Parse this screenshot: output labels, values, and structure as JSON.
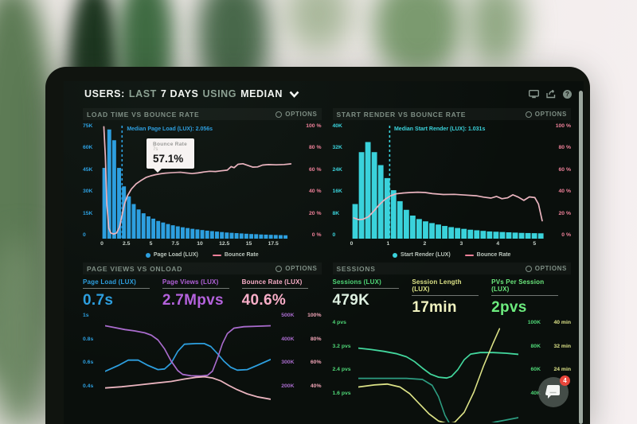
{
  "colors": {
    "blue": "#2d9fdf",
    "cyan": "#3ad2db",
    "pink_line": "#eab4bf",
    "pink_axis": "#ee8099",
    "pink_soft": "#f0a4b6",
    "purple": "#aa6cce",
    "purple_value": "#b462dc",
    "pink_value": "#f9aec8",
    "green": "#4fd877",
    "green_value": "#6ceb7e",
    "pale_green_value": "#def1e1",
    "yellow": "#dde387",
    "yellow_value": "#f0f2c0",
    "teal": "#43d89e",
    "teal_dark": "#2d9e82",
    "white": "#f2f5f2",
    "red_badge": "#e8463b"
  },
  "header": {
    "users": "USERS:",
    "last": "LAST",
    "days": "7 DAYS",
    "using": "USING",
    "median": "MEDIAN",
    "help_glyph": "?"
  },
  "panels": {
    "load_time": {
      "title": "LOAD TIME VS BOUNCE RATE",
      "options": "OPTIONS",
      "annotation": "Median Page Load (LUX): 2.056s",
      "tooltip": {
        "series": "Bounce Rate",
        "x": "7s",
        "value": "57.1%"
      },
      "legend": [
        {
          "label": "Page Load (LUX)"
        },
        {
          "label": "Bounce Rate"
        }
      ]
    },
    "start_render": {
      "title": "START RENDER VS BOUNCE RATE",
      "options": "OPTIONS",
      "annotation": "Median Start Render (LUX): 1.031s",
      "legend": [
        {
          "label": "Start Render (LUX)"
        },
        {
          "label": "Bounce Rate"
        }
      ]
    },
    "page_views": {
      "title": "PAGE VIEWS VS ONLOAD",
      "options": "OPTIONS",
      "metrics": [
        {
          "label": "Page Load (LUX)",
          "value": "0.7s"
        },
        {
          "label": "Page Views (LUX)",
          "value": "2.7Mpvs"
        },
        {
          "label": "Bounce Rate (LUX)",
          "value": "40.6%"
        }
      ]
    },
    "sessions": {
      "title": "SESSIONS",
      "options": "OPTIONS",
      "metrics": [
        {
          "label": "Sessions (LUX)",
          "value": "479K"
        },
        {
          "label": "Session Length (LUX)",
          "value": "17min"
        },
        {
          "label": "PVs Per Session (LUX)",
          "value": "2pvs"
        }
      ]
    }
  },
  "chat_widget": {
    "badge": "4"
  },
  "chart_data": [
    {
      "type": "bar",
      "title": "LOAD TIME VS BOUNCE RATE",
      "x_axis_max": 19.8,
      "x_ticks": [
        {
          "label": "0",
          "v": 0
        },
        {
          "label": "2.5",
          "v": 2.5
        },
        {
          "label": "5",
          "v": 5
        },
        {
          "label": "7.5",
          "v": 7.5
        },
        {
          "label": "10",
          "v": 10
        },
        {
          "label": "12.5",
          "v": 12.5
        },
        {
          "label": "15",
          "v": 15
        },
        {
          "label": "17.5",
          "v": 17.5
        }
      ],
      "y_left": {
        "max_k": 75,
        "ticks": [
          "75K",
          "60K",
          "45K",
          "30K",
          "15K",
          "0"
        ],
        "color": "blue"
      },
      "y_right": {
        "max_pct": 100,
        "ticks": [
          "100 %",
          "80 %",
          "60 %",
          "40 %",
          "20 %",
          "0 %"
        ],
        "color": "pink_axis"
      },
      "bar_series": {
        "name": "Page Load (LUX)",
        "color": "blue",
        "bin_width_s": 0.5,
        "values_k": [
          46,
          71,
          64,
          46,
          34,
          27.5,
          22.5,
          19,
          16.5,
          14.5,
          13,
          11.5,
          10.5,
          9.5,
          8.7,
          8,
          7.4,
          6.9,
          6.4,
          6,
          5.6,
          5.2,
          4.9,
          4.6,
          4.3,
          4,
          3.8,
          3.6,
          3.4,
          3.2,
          3,
          2.9,
          2.7,
          2.6,
          2.5,
          2.4,
          2.3,
          2.2
        ]
      },
      "line_series": {
        "name": "Bounce Rate",
        "color": "pink_line",
        "points_s_pct": [
          [
            0.2,
            97
          ],
          [
            0.35,
            72
          ],
          [
            0.5,
            30
          ],
          [
            0.7,
            9
          ],
          [
            0.9,
            5
          ],
          [
            1.2,
            4
          ],
          [
            1.5,
            5
          ],
          [
            1.8,
            10
          ],
          [
            2.0,
            18
          ],
          [
            2.3,
            30
          ],
          [
            2.6,
            37
          ],
          [
            3.0,
            43
          ],
          [
            3.5,
            47.5
          ],
          [
            4.0,
            50.5
          ],
          [
            4.5,
            53
          ],
          [
            5.0,
            54.5
          ],
          [
            5.5,
            55.5
          ],
          [
            6.0,
            56.3
          ],
          [
            6.5,
            56.8
          ],
          [
            7.0,
            57.1
          ],
          [
            7.5,
            57.4
          ],
          [
            8.0,
            57.6
          ],
          [
            8.6,
            57
          ],
          [
            9.2,
            56.4
          ],
          [
            9.8,
            57
          ],
          [
            10.4,
            57.8
          ],
          [
            11.0,
            58.4
          ],
          [
            11.6,
            58.2
          ],
          [
            12.2,
            58.8
          ],
          [
            12.8,
            59.4
          ],
          [
            13.2,
            62.5
          ],
          [
            13.5,
            61.5
          ],
          [
            13.9,
            64.5
          ],
          [
            14.4,
            65
          ],
          [
            14.9,
            63.5
          ],
          [
            15.4,
            62
          ],
          [
            15.9,
            62.2
          ],
          [
            16.4,
            63.8
          ],
          [
            17.0,
            64.2
          ],
          [
            17.8,
            64
          ],
          [
            18.6,
            64.3
          ],
          [
            19.3,
            64.8
          ]
        ]
      },
      "median": {
        "label": "Median Page Load (LUX): 2.056s",
        "value_s": 2.056,
        "color": "blue"
      },
      "tooltip": {
        "series": "Bounce Rate",
        "x_s": 7,
        "value_pct": 57.1
      }
    },
    {
      "type": "bar",
      "title": "START RENDER VS BOUNCE RATE",
      "x_axis_max": 5.3,
      "x_ticks": [
        {
          "label": "0",
          "v": 0
        },
        {
          "label": "1",
          "v": 1
        },
        {
          "label": "2",
          "v": 2
        },
        {
          "label": "3",
          "v": 3
        },
        {
          "label": "4",
          "v": 4
        },
        {
          "label": "5",
          "v": 5
        }
      ],
      "y_left": {
        "max_k": 40,
        "ticks": [
          "40K",
          "32K",
          "24K",
          "16K",
          "8K",
          "0"
        ],
        "color": "cyan"
      },
      "y_right": {
        "max_pct": 100,
        "ticks": [
          "100 %",
          "80 %",
          "60 %",
          "40 %",
          "20 %",
          "0 %"
        ],
        "color": "pink_axis"
      },
      "bar_series": {
        "name": "Start Render (LUX)",
        "color": "cyan",
        "bin_width_s": 0.175,
        "values_k": [
          12,
          30,
          33.5,
          30,
          25.5,
          21,
          16.8,
          13,
          10,
          8,
          6.8,
          6,
          5.4,
          4.9,
          4.4,
          4,
          3.7,
          3.4,
          3.1,
          2.9,
          2.7,
          2.5,
          2.4,
          2.3,
          2.2,
          2.1,
          2.0,
          1.95,
          1.9,
          1.85
        ]
      },
      "line_series": {
        "name": "Bounce Rate",
        "color": "pink_line",
        "points_s_pct": [
          [
            0.05,
            18
          ],
          [
            0.18,
            16.5
          ],
          [
            0.3,
            16.8
          ],
          [
            0.45,
            19
          ],
          [
            0.6,
            24
          ],
          [
            0.75,
            29.5
          ],
          [
            0.9,
            34
          ],
          [
            1.05,
            37
          ],
          [
            1.2,
            38.8
          ],
          [
            1.4,
            39.6
          ],
          [
            1.6,
            40
          ],
          [
            1.8,
            40.3
          ],
          [
            2.0,
            40
          ],
          [
            2.2,
            39
          ],
          [
            2.5,
            38.3
          ],
          [
            2.8,
            38.4
          ],
          [
            3.1,
            37.8
          ],
          [
            3.4,
            37.2
          ],
          [
            3.6,
            36
          ],
          [
            3.8,
            35.2
          ],
          [
            3.95,
            36.6
          ],
          [
            4.1,
            34.6
          ],
          [
            4.25,
            35.4
          ],
          [
            4.4,
            38
          ],
          [
            4.55,
            36
          ],
          [
            4.7,
            33.2
          ],
          [
            4.85,
            36.2
          ],
          [
            5.0,
            35.6
          ],
          [
            5.1,
            30
          ],
          [
            5.2,
            15.5
          ]
        ]
      },
      "median": {
        "label": "Median Start Render (LUX): 1.031s",
        "value_s": 1.031,
        "color": "cyan"
      }
    },
    {
      "type": "line",
      "title": "PAGE VIEWS VS ONLOAD",
      "y_axes": {
        "seconds": {
          "ticks": [
            "1s",
            "0.8s",
            "0.6s",
            "0.4s"
          ],
          "color": "blue"
        },
        "views": {
          "ticks": [
            "500K",
            "400K",
            "300K",
            "200K"
          ],
          "color": "purple"
        },
        "pct": {
          "ticks": [
            "100%",
            "80%",
            "60%",
            "40%"
          ],
          "color": "pink_soft"
        }
      },
      "y_domains": {
        "s": [
          1.054,
          0.178
        ],
        "k": [
          527,
          89
        ],
        "pct": [
          105.4,
          17.9
        ]
      },
      "series": [
        {
          "name": "Page Load (LUX)",
          "axis": "s",
          "color": "blue",
          "points": [
            [
              0,
              0.55
            ],
            [
              0.08,
              0.6
            ],
            [
              0.14,
              0.645
            ],
            [
              0.2,
              0.645
            ],
            [
              0.26,
              0.6
            ],
            [
              0.32,
              0.565
            ],
            [
              0.36,
              0.57
            ],
            [
              0.4,
              0.62
            ],
            [
              0.44,
              0.72
            ],
            [
              0.48,
              0.78
            ],
            [
              0.55,
              0.785
            ],
            [
              0.6,
              0.785
            ],
            [
              0.64,
              0.76
            ],
            [
              0.68,
              0.7
            ],
            [
              0.72,
              0.635
            ],
            [
              0.76,
              0.585
            ],
            [
              0.8,
              0.56
            ],
            [
              0.86,
              0.565
            ],
            [
              0.92,
              0.6
            ],
            [
              1,
              0.65
            ]
          ]
        },
        {
          "name": "Page Views (LUX)",
          "axis": "k",
          "color": "purple",
          "points": [
            [
              0,
              468
            ],
            [
              0.06,
              460
            ],
            [
              0.12,
              452
            ],
            [
              0.18,
              446
            ],
            [
              0.24,
              438
            ],
            [
              0.28,
              428
            ],
            [
              0.32,
              408
            ],
            [
              0.36,
              370
            ],
            [
              0.4,
              318
            ],
            [
              0.44,
              278
            ],
            [
              0.47,
              262
            ],
            [
              0.52,
              256
            ],
            [
              0.58,
              255
            ],
            [
              0.62,
              258
            ],
            [
              0.65,
              276
            ],
            [
              0.68,
              330
            ],
            [
              0.71,
              392
            ],
            [
              0.74,
              435
            ],
            [
              0.78,
              458
            ],
            [
              0.84,
              464
            ],
            [
              0.92,
              466
            ],
            [
              1,
              468
            ]
          ]
        },
        {
          "name": "Bounce Rate (LUX)",
          "axis": "pct",
          "color": "pink_line",
          "points": [
            [
              0,
              41
            ],
            [
              0.1,
              42
            ],
            [
              0.2,
              43.5
            ],
            [
              0.3,
              45
            ],
            [
              0.4,
              46.5
            ],
            [
              0.48,
              48.5
            ],
            [
              0.55,
              50
            ],
            [
              0.6,
              50.5
            ],
            [
              0.65,
              49.5
            ],
            [
              0.7,
              47
            ],
            [
              0.75,
              43
            ],
            [
              0.8,
              39.5
            ],
            [
              0.86,
              36
            ],
            [
              0.92,
              33.5
            ],
            [
              1,
              31.5
            ]
          ]
        }
      ]
    },
    {
      "type": "line",
      "title": "SESSIONS",
      "y_axes": {
        "pvs": {
          "ticks": [
            "4 pvs",
            "3.2 pvs",
            "2.4 pvs",
            "1.6 pvs"
          ],
          "color": "green"
        },
        "sessions": {
          "ticks": [
            "100K",
            "80K",
            "60K",
            "40K"
          ],
          "color": "green"
        },
        "minutes": {
          "ticks": [
            "40 min",
            "32 min",
            "24 min"
          ],
          "color": "yellow"
        }
      },
      "y_domains": {
        "pvs": [
          4.14,
          0.69
        ],
        "k": [
          103.4,
          13.8
        ],
        "min": [
          41.4,
          5.5
        ]
      },
      "series": [
        {
          "name": "PVs Per Session (LUX)",
          "axis": "pvs",
          "color": "teal",
          "points": [
            [
              0,
              3.17
            ],
            [
              0.08,
              3.12
            ],
            [
              0.16,
              3.06
            ],
            [
              0.24,
              2.98
            ],
            [
              0.3,
              2.88
            ],
            [
              0.35,
              2.72
            ],
            [
              0.4,
              2.5
            ],
            [
              0.45,
              2.3
            ],
            [
              0.5,
              2.2
            ],
            [
              0.55,
              2.17
            ],
            [
              0.58,
              2.22
            ],
            [
              0.62,
              2.45
            ],
            [
              0.66,
              2.78
            ],
            [
              0.7,
              2.97
            ],
            [
              0.76,
              3.02
            ],
            [
              0.84,
              3.02
            ],
            [
              0.92,
              3.0
            ],
            [
              1,
              2.96
            ]
          ]
        },
        {
          "name": "Sessions (LUX)",
          "axis": "k",
          "color": "teal_dark",
          "points": [
            [
              0,
              52
            ],
            [
              0.15,
              52
            ],
            [
              0.3,
              52
            ],
            [
              0.4,
              51
            ],
            [
              0.46,
              46
            ],
            [
              0.5,
              36
            ],
            [
              0.54,
              20
            ],
            [
              0.58,
              10
            ],
            [
              0.65,
              8
            ],
            [
              0.75,
              10
            ],
            [
              0.85,
              14
            ],
            [
              1,
              18
            ]
          ]
        },
        {
          "name": "Session Length (LUX)",
          "axis": "min",
          "color": "yellow",
          "points": [
            [
              0,
              17.8
            ],
            [
              0.1,
              18.5
            ],
            [
              0.18,
              18.8
            ],
            [
              0.26,
              17.8
            ],
            [
              0.32,
              15.5
            ],
            [
              0.38,
              12
            ],
            [
              0.44,
              8.5
            ],
            [
              0.5,
              6
            ],
            [
              0.56,
              5
            ],
            [
              0.6,
              5.5
            ],
            [
              0.66,
              9
            ],
            [
              0.72,
              16
            ],
            [
              0.78,
              25
            ],
            [
              0.84,
              33
            ],
            [
              0.88,
              38
            ]
          ]
        }
      ]
    }
  ]
}
